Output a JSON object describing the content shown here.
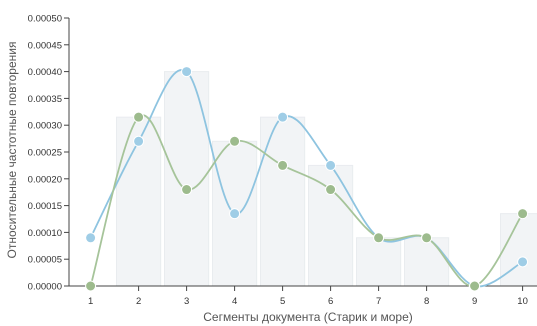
{
  "chart_data": {
    "type": "line",
    "title": "",
    "xlabel": "Сегменты документа (Старик и море)",
    "ylabel": "Относительные частотные повторения",
    "x": [
      1,
      2,
      3,
      4,
      5,
      6,
      7,
      8,
      9,
      10
    ],
    "x_tick_labels": [
      "1",
      "2",
      "3",
      "4",
      "5",
      "6",
      "7",
      "8",
      "9",
      "10"
    ],
    "y_tick_labels": [
      "0.00000",
      "0.00005",
      "0.00010",
      "0.00015",
      "0.00020",
      "0.00025",
      "0.00030",
      "0.00035",
      "0.00040",
      "0.00045",
      "0.00050"
    ],
    "xlim": [
      0.55,
      10.3
    ],
    "ylim": [
      0,
      0.0005
    ],
    "grid": false,
    "legend": "none",
    "series": [
      {
        "color": "#8ec4e0",
        "point_color": "#9fcde6",
        "values": [
          9e-05,
          0.00027,
          0.0004,
          0.000135,
          0.000315,
          0.000225,
          9e-05,
          9e-05,
          0.0,
          4.5e-05
        ]
      },
      {
        "color": "#a6c49a",
        "point_color": "#9dbb8d",
        "values": [
          0.0,
          0.000315,
          0.00018,
          0.00027,
          0.000225,
          0.00018,
          9e-05,
          9e-05,
          0.0,
          0.000135
        ]
      }
    ],
    "background_bars": {
      "color": "#f2f4f6",
      "values": [
        0.0,
        0.000315,
        0.0004,
        0.00027,
        0.000315,
        0.000225,
        9e-05,
        9e-05,
        0.0,
        0.000135
      ]
    }
  }
}
